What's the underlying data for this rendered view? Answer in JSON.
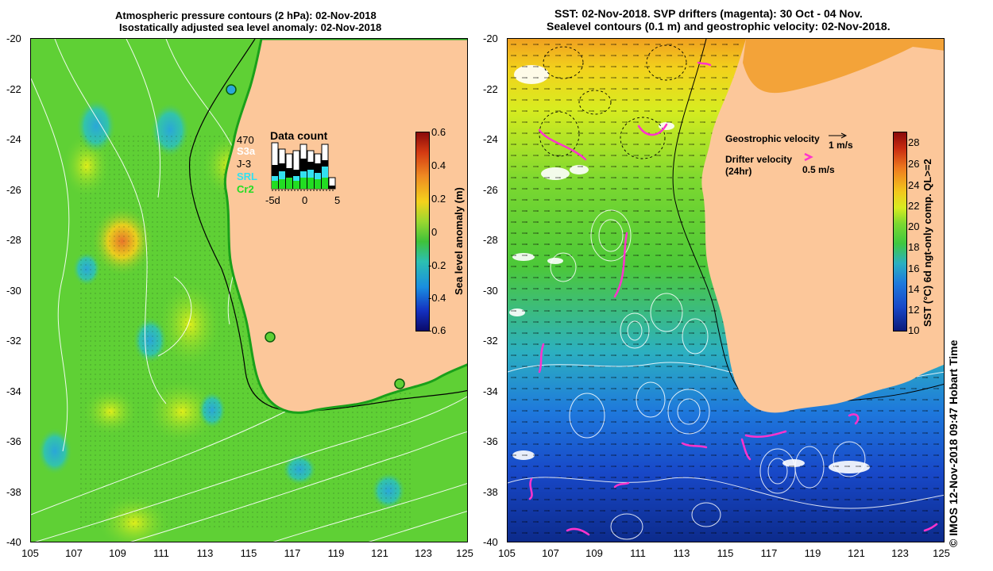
{
  "left_panel": {
    "title_line1": "Atmospheric pressure contours (2 hPa): 02-Nov-2018",
    "title_line2": "Isostatically adjusted sea level anomaly: 02-Nov-2018",
    "colorbar_label": "Sea level anomaly (m)",
    "colorbar_ticks": [
      "0.6",
      "0.4",
      "0.2",
      "0",
      "-0.2",
      "-0.4",
      "-0.6"
    ],
    "colorbar_range": [
      -0.6,
      0.6
    ],
    "data_count": {
      "title": "Data count",
      "total": "470",
      "missions": [
        {
          "name": "S3a",
          "color": "#ffffff"
        },
        {
          "name": "J-3",
          "color": "#000000"
        },
        {
          "name": "SRL",
          "color": "#33e0f0"
        },
        {
          "name": "Cr2",
          "color": "#22dd22"
        }
      ],
      "axis_ticks": [
        "-5d",
        "0",
        "5"
      ]
    }
  },
  "right_panel": {
    "title_line1": "SST: 02-Nov-2018. SVP drifters (magenta): 30 Oct - 04 Nov.",
    "title_line2": "Sealevel contours (0.1 m) and geostrophic velocity: 02-Nov-2018.",
    "geostrophic_label": "Geostrophic velocity",
    "geostrophic_scale": "1 m/s",
    "drifter_label": "Drifter velocity",
    "drifter_sub": "(24hr)",
    "drifter_scale": "0.5 m/s",
    "colorbar_label": "SST (°C) 6d ngt-only comp. QL>=2",
    "colorbar_ticks": [
      "28",
      "26",
      "24",
      "22",
      "20",
      "18",
      "16",
      "14",
      "12",
      "10"
    ],
    "colorbar_range": [
      10,
      29
    ]
  },
  "axes": {
    "x_ticks": [
      "105",
      "107",
      "109",
      "111",
      "113",
      "115",
      "117",
      "119",
      "121",
      "123",
      "125"
    ],
    "y_ticks": [
      "-20",
      "-22",
      "-24",
      "-26",
      "-28",
      "-30",
      "-32",
      "-34",
      "-36",
      "-38",
      "-40"
    ],
    "lon_range": [
      105,
      125
    ],
    "lat_range": [
      -40,
      -20
    ]
  },
  "footer": "© IMOS 12-Nov-2018 09:47 Hobart Time",
  "colors": {
    "land": "#fcc79a",
    "sla_ocean": "#5fd035",
    "sst_warm": "#f09a20",
    "sst_cool": "#1b4fc0",
    "drifter": "#ff33cc"
  }
}
